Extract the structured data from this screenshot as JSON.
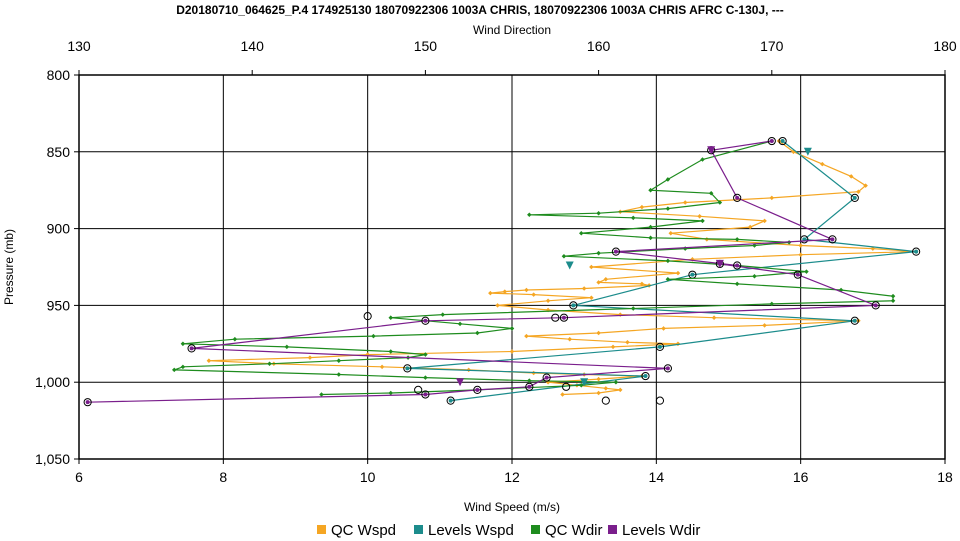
{
  "chart_data": {
    "type": "line",
    "title": "D20180710_064625_P.4 174925130 18070922306 1003A CHRIS, 18070922306 1003A CHRIS AFRC C-130J, ---",
    "xlabel": "Wind Speed (m/s)",
    "x2label": "Wind Direction",
    "ylabel": "Pressure (mb)",
    "xlim": [
      6,
      18
    ],
    "x2lim": [
      130,
      180
    ],
    "ylim": [
      800,
      1050
    ],
    "y_inverted": true,
    "grid": true,
    "legend_position": "bottom",
    "x_ticks": [
      "6",
      "8",
      "10",
      "12",
      "14",
      "16",
      "18"
    ],
    "x2_ticks": [
      "130",
      "140",
      "150",
      "160",
      "170",
      "180"
    ],
    "y_ticks": [
      "800",
      "850",
      "900",
      "950",
      "1,000",
      "1,050"
    ],
    "series": [
      {
        "name": "QC Wspd",
        "color": "#F5A623",
        "axis": "bottom",
        "marker": "dot",
        "points": [
          [
            15.7,
            843
          ],
          [
            15.9,
            850
          ],
          [
            16.3,
            858
          ],
          [
            16.7,
            866
          ],
          [
            16.9,
            872
          ],
          [
            16.8,
            876
          ],
          [
            15.6,
            880
          ],
          [
            14.4,
            883
          ],
          [
            13.8,
            886
          ],
          [
            13.5,
            889
          ],
          [
            14.6,
            892
          ],
          [
            15.5,
            895
          ],
          [
            15.3,
            899
          ],
          [
            14.2,
            903
          ],
          [
            14.7,
            907
          ],
          [
            16.0,
            911
          ],
          [
            17.0,
            913
          ],
          [
            17.6,
            915
          ],
          [
            16.0,
            917
          ],
          [
            14.5,
            920
          ],
          [
            13.1,
            925
          ],
          [
            14.3,
            929
          ],
          [
            13.3,
            933
          ],
          [
            13.2,
            935
          ],
          [
            13.8,
            936
          ],
          [
            13.9,
            937
          ],
          [
            13.0,
            939
          ],
          [
            12.2,
            940
          ],
          [
            11.9,
            941
          ],
          [
            11.7,
            942
          ],
          [
            12.3,
            943
          ],
          [
            13.1,
            945
          ],
          [
            12.5,
            947
          ],
          [
            11.8,
            950
          ],
          [
            12.5,
            953
          ],
          [
            13.5,
            956
          ],
          [
            14.8,
            958
          ],
          [
            16.8,
            960
          ],
          [
            15.5,
            963
          ],
          [
            14.1,
            965
          ],
          [
            13.2,
            968
          ],
          [
            12.2,
            970
          ],
          [
            12.8,
            972
          ],
          [
            13.6,
            974
          ],
          [
            14.3,
            975
          ],
          [
            13.4,
            977
          ],
          [
            12.0,
            980
          ],
          [
            10.0,
            982
          ],
          [
            9.2,
            984
          ],
          [
            7.8,
            986
          ],
          [
            8.7,
            988
          ],
          [
            10.2,
            990
          ],
          [
            11.4,
            992
          ],
          [
            12.3,
            994
          ],
          [
            13.0,
            995
          ],
          [
            13.8,
            996
          ],
          [
            13.2,
            998
          ],
          [
            12.5,
            1000
          ],
          [
            12.9,
            1002
          ],
          [
            13.3,
            1004
          ],
          [
            13.5,
            1005
          ],
          [
            13.2,
            1007
          ],
          [
            12.7,
            1008
          ]
        ]
      },
      {
        "name": "Levels Wspd",
        "color": "#1C8C8C",
        "axis": "bottom",
        "marker": "circle",
        "points": [
          [
            15.75,
            843
          ],
          [
            16.75,
            880
          ],
          [
            16.05,
            907
          ],
          [
            17.6,
            915
          ],
          [
            14.5,
            930
          ],
          [
            12.85,
            950
          ],
          [
            16.75,
            960
          ],
          [
            14.05,
            977
          ],
          [
            10.55,
            991
          ],
          [
            13.85,
            996
          ],
          [
            11.15,
            1012
          ]
        ]
      },
      {
        "name": "QC Wdir",
        "color": "#1E8C1E",
        "axis": "top",
        "marker": "dot",
        "points": [
          [
            170,
            843
          ],
          [
            166,
            855
          ],
          [
            164,
            868
          ],
          [
            163,
            875
          ],
          [
            166.5,
            877
          ],
          [
            167,
            883
          ],
          [
            164,
            887
          ],
          [
            160,
            890
          ],
          [
            156,
            891
          ],
          [
            162,
            893
          ],
          [
            166,
            895
          ],
          [
            163,
            899
          ],
          [
            159,
            903
          ],
          [
            163,
            906
          ],
          [
            168,
            907
          ],
          [
            171,
            909
          ],
          [
            169,
            911
          ],
          [
            165,
            913
          ],
          [
            160,
            916
          ],
          [
            158,
            918
          ],
          [
            164,
            921
          ],
          [
            168,
            924
          ],
          [
            172,
            928
          ],
          [
            169,
            931
          ],
          [
            164,
            933
          ],
          [
            168,
            936
          ],
          [
            174,
            940
          ],
          [
            177,
            944
          ],
          [
            177,
            947
          ],
          [
            170,
            949
          ],
          [
            162,
            952
          ],
          [
            151,
            956
          ],
          [
            148,
            958
          ],
          [
            152,
            962
          ],
          [
            155,
            965
          ],
          [
            153,
            968
          ],
          [
            147,
            970
          ],
          [
            139,
            972
          ],
          [
            136,
            975
          ],
          [
            142,
            977
          ],
          [
            148,
            980
          ],
          [
            150,
            982
          ],
          [
            149,
            984
          ],
          [
            145,
            986
          ],
          [
            141,
            988
          ],
          [
            136,
            990
          ],
          [
            135.5,
            992
          ],
          [
            145,
            995
          ],
          [
            150,
            997
          ],
          [
            156,
            999
          ],
          [
            161,
            1000
          ],
          [
            159,
            1002
          ],
          [
            155,
            1004
          ],
          [
            153,
            1005
          ],
          [
            148,
            1007
          ],
          [
            144,
            1008
          ]
        ]
      },
      {
        "name": "Levels Wdir",
        "color": "#7A1E8C",
        "axis": "top",
        "marker": "circle",
        "points": [
          [
            170,
            843
          ],
          [
            166.5,
            849
          ],
          [
            168,
            880
          ],
          [
            173.5,
            907
          ],
          [
            161,
            915
          ],
          [
            168,
            924
          ],
          [
            167,
            923
          ],
          [
            171.5,
            930
          ],
          [
            176,
            950
          ],
          [
            158,
            958
          ],
          [
            150,
            960
          ],
          [
            136.5,
            978
          ],
          [
            164,
            991
          ],
          [
            157,
            997
          ],
          [
            156,
            1003
          ],
          [
            153,
            1005
          ],
          [
            150,
            1008
          ],
          [
            130.5,
            1013
          ]
        ]
      }
    ],
    "extra_points": [
      {
        "axis": "top",
        "x": 166.5,
        "y": 849,
        "marker": "triangle",
        "color": "#7A1E8C"
      },
      {
        "axis": "bottom",
        "x": 16.1,
        "y": 850,
        "marker": "triangle",
        "color": "#1C8C8C"
      },
      {
        "axis": "top",
        "x": 167,
        "y": 923,
        "marker": "triangle",
        "color": "#7A1E8C"
      },
      {
        "axis": "bottom",
        "x": 12.8,
        "y": 924,
        "marker": "triangle",
        "color": "#1C8C8C"
      },
      {
        "axis": "bottom",
        "x": 13.0,
        "y": 1000,
        "marker": "triangle",
        "color": "#1C8C8C"
      },
      {
        "axis": "top",
        "x": 152,
        "y": 1000,
        "marker": "triangle",
        "color": "#7A1E8C"
      },
      {
        "axis": "bottom",
        "x": 10.0,
        "y": 957,
        "marker": "circle",
        "color": "#000000"
      },
      {
        "axis": "bottom",
        "x": 12.6,
        "y": 958,
        "marker": "circle",
        "color": "#000000"
      },
      {
        "axis": "bottom",
        "x": 10.7,
        "y": 1005,
        "marker": "circle",
        "color": "#000000"
      },
      {
        "axis": "bottom",
        "x": 12.75,
        "y": 1003,
        "marker": "circle",
        "color": "#000000"
      },
      {
        "axis": "bottom",
        "x": 13.3,
        "y": 1012,
        "marker": "circle",
        "color": "#000000"
      },
      {
        "axis": "bottom",
        "x": 14.05,
        "y": 1012,
        "marker": "circle",
        "color": "#000000"
      }
    ]
  }
}
